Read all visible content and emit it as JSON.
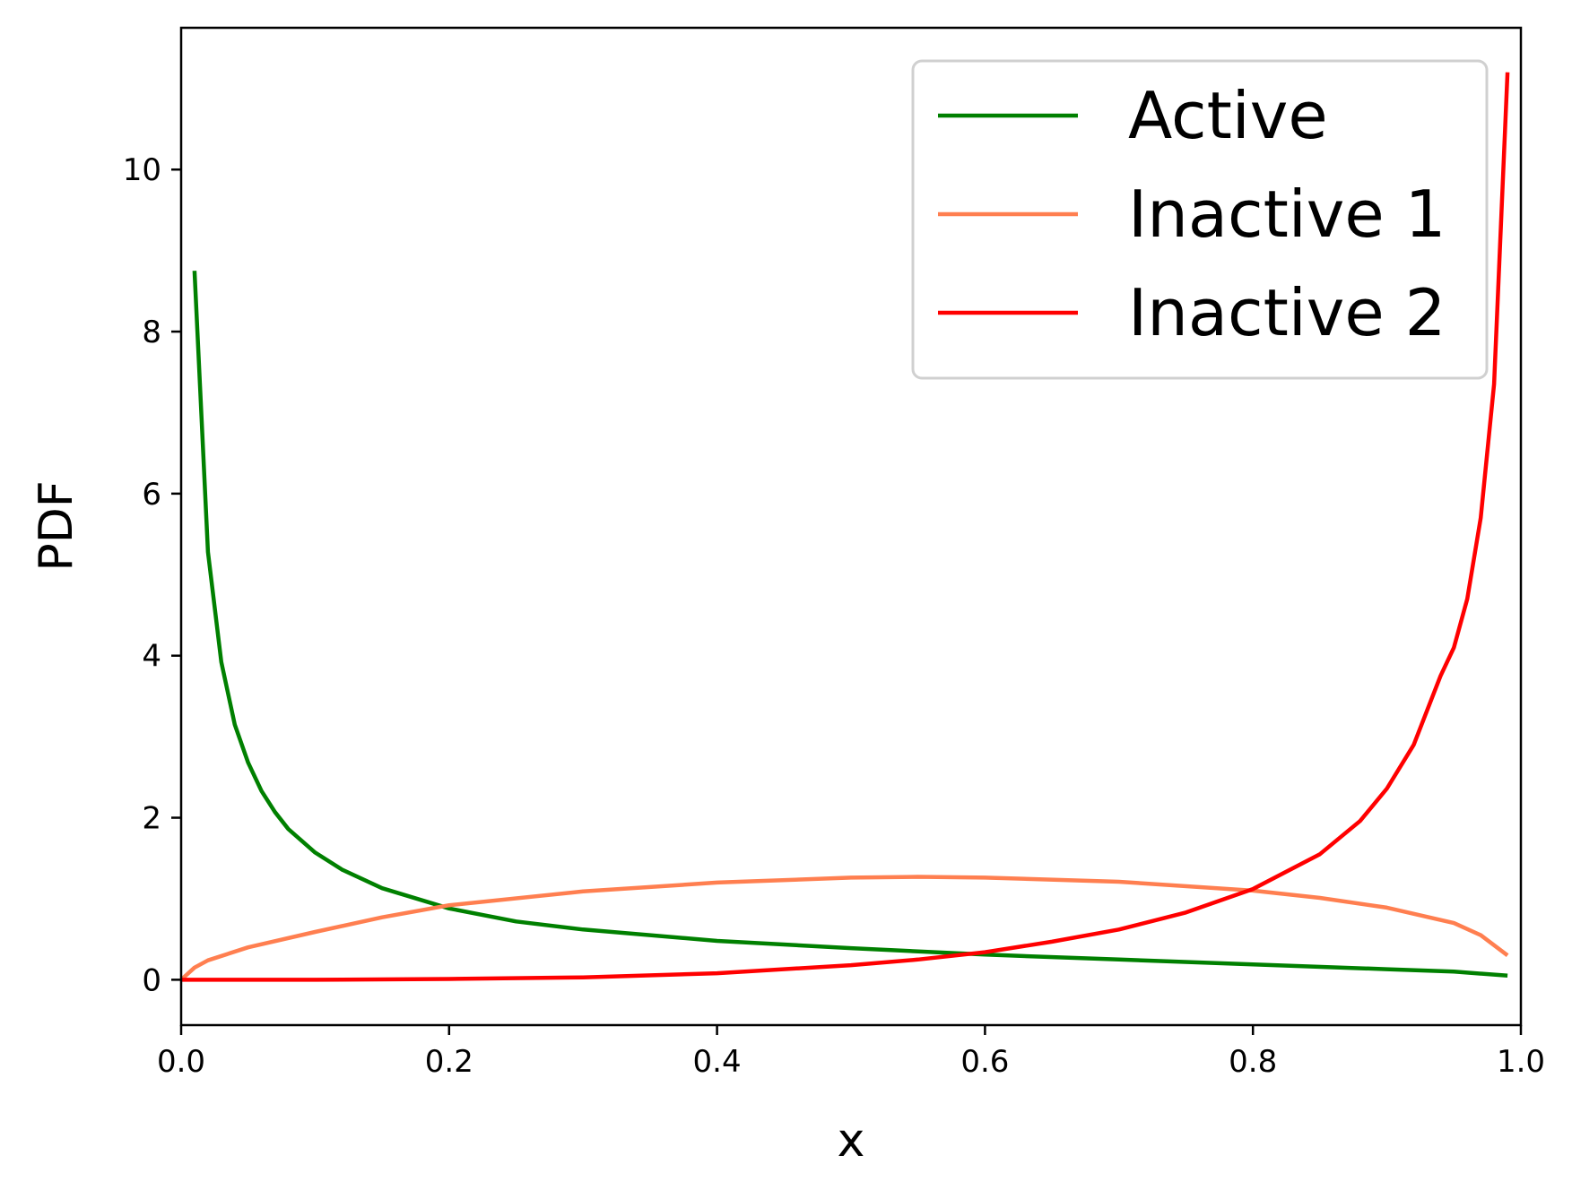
{
  "chart_data": {
    "type": "line",
    "title": "",
    "xlabel": "x",
    "ylabel": "PDF",
    "xlim": [
      0.0,
      1.0
    ],
    "ylim": [
      -0.56,
      11.75
    ],
    "xticks": [
      0.0,
      0.2,
      0.4,
      0.6,
      0.8,
      1.0
    ],
    "xtick_labels": [
      "0.0",
      "0.2",
      "0.4",
      "0.6",
      "0.8",
      "1.0"
    ],
    "yticks": [
      0,
      2,
      4,
      6,
      8,
      10
    ],
    "ytick_labels": [
      "0",
      "2",
      "4",
      "6",
      "8",
      "10"
    ],
    "grid": false,
    "legend_position": "top-right",
    "series": [
      {
        "name": "Active",
        "color": "#008000",
        "x": [
          0.01,
          0.02,
          0.03,
          0.04,
          0.05,
          0.06,
          0.07,
          0.08,
          0.1,
          0.12,
          0.15,
          0.2,
          0.25,
          0.3,
          0.4,
          0.5,
          0.6,
          0.7,
          0.8,
          0.9,
          0.95,
          0.99
        ],
        "y": [
          8.75,
          5.28,
          3.92,
          3.15,
          2.68,
          2.33,
          2.07,
          1.86,
          1.57,
          1.36,
          1.13,
          0.88,
          0.72,
          0.62,
          0.48,
          0.39,
          0.31,
          0.25,
          0.19,
          0.13,
          0.1,
          0.05
        ]
      },
      {
        "name": "Inactive 1",
        "color": "#FF7F50",
        "x": [
          0.0,
          0.01,
          0.02,
          0.05,
          0.1,
          0.15,
          0.2,
          0.3,
          0.4,
          0.5,
          0.55,
          0.6,
          0.7,
          0.8,
          0.85,
          0.9,
          0.95,
          0.97,
          0.99
        ],
        "y": [
          0.0,
          0.15,
          0.24,
          0.4,
          0.59,
          0.77,
          0.92,
          1.09,
          1.2,
          1.26,
          1.27,
          1.26,
          1.21,
          1.1,
          1.01,
          0.89,
          0.7,
          0.55,
          0.3
        ]
      },
      {
        "name": "Inactive 2",
        "color": "#FF0000",
        "x": [
          0.0,
          0.1,
          0.2,
          0.3,
          0.4,
          0.5,
          0.55,
          0.6,
          0.65,
          0.7,
          0.75,
          0.8,
          0.85,
          0.88,
          0.9,
          0.92,
          0.94,
          0.95,
          0.96,
          0.97,
          0.98,
          0.99
        ],
        "y": [
          0.0,
          0.0,
          0.01,
          0.03,
          0.08,
          0.18,
          0.25,
          0.34,
          0.47,
          0.62,
          0.83,
          1.12,
          1.55,
          1.96,
          2.36,
          2.9,
          3.75,
          4.1,
          4.7,
          5.7,
          7.35,
          11.2
        ]
      }
    ]
  }
}
